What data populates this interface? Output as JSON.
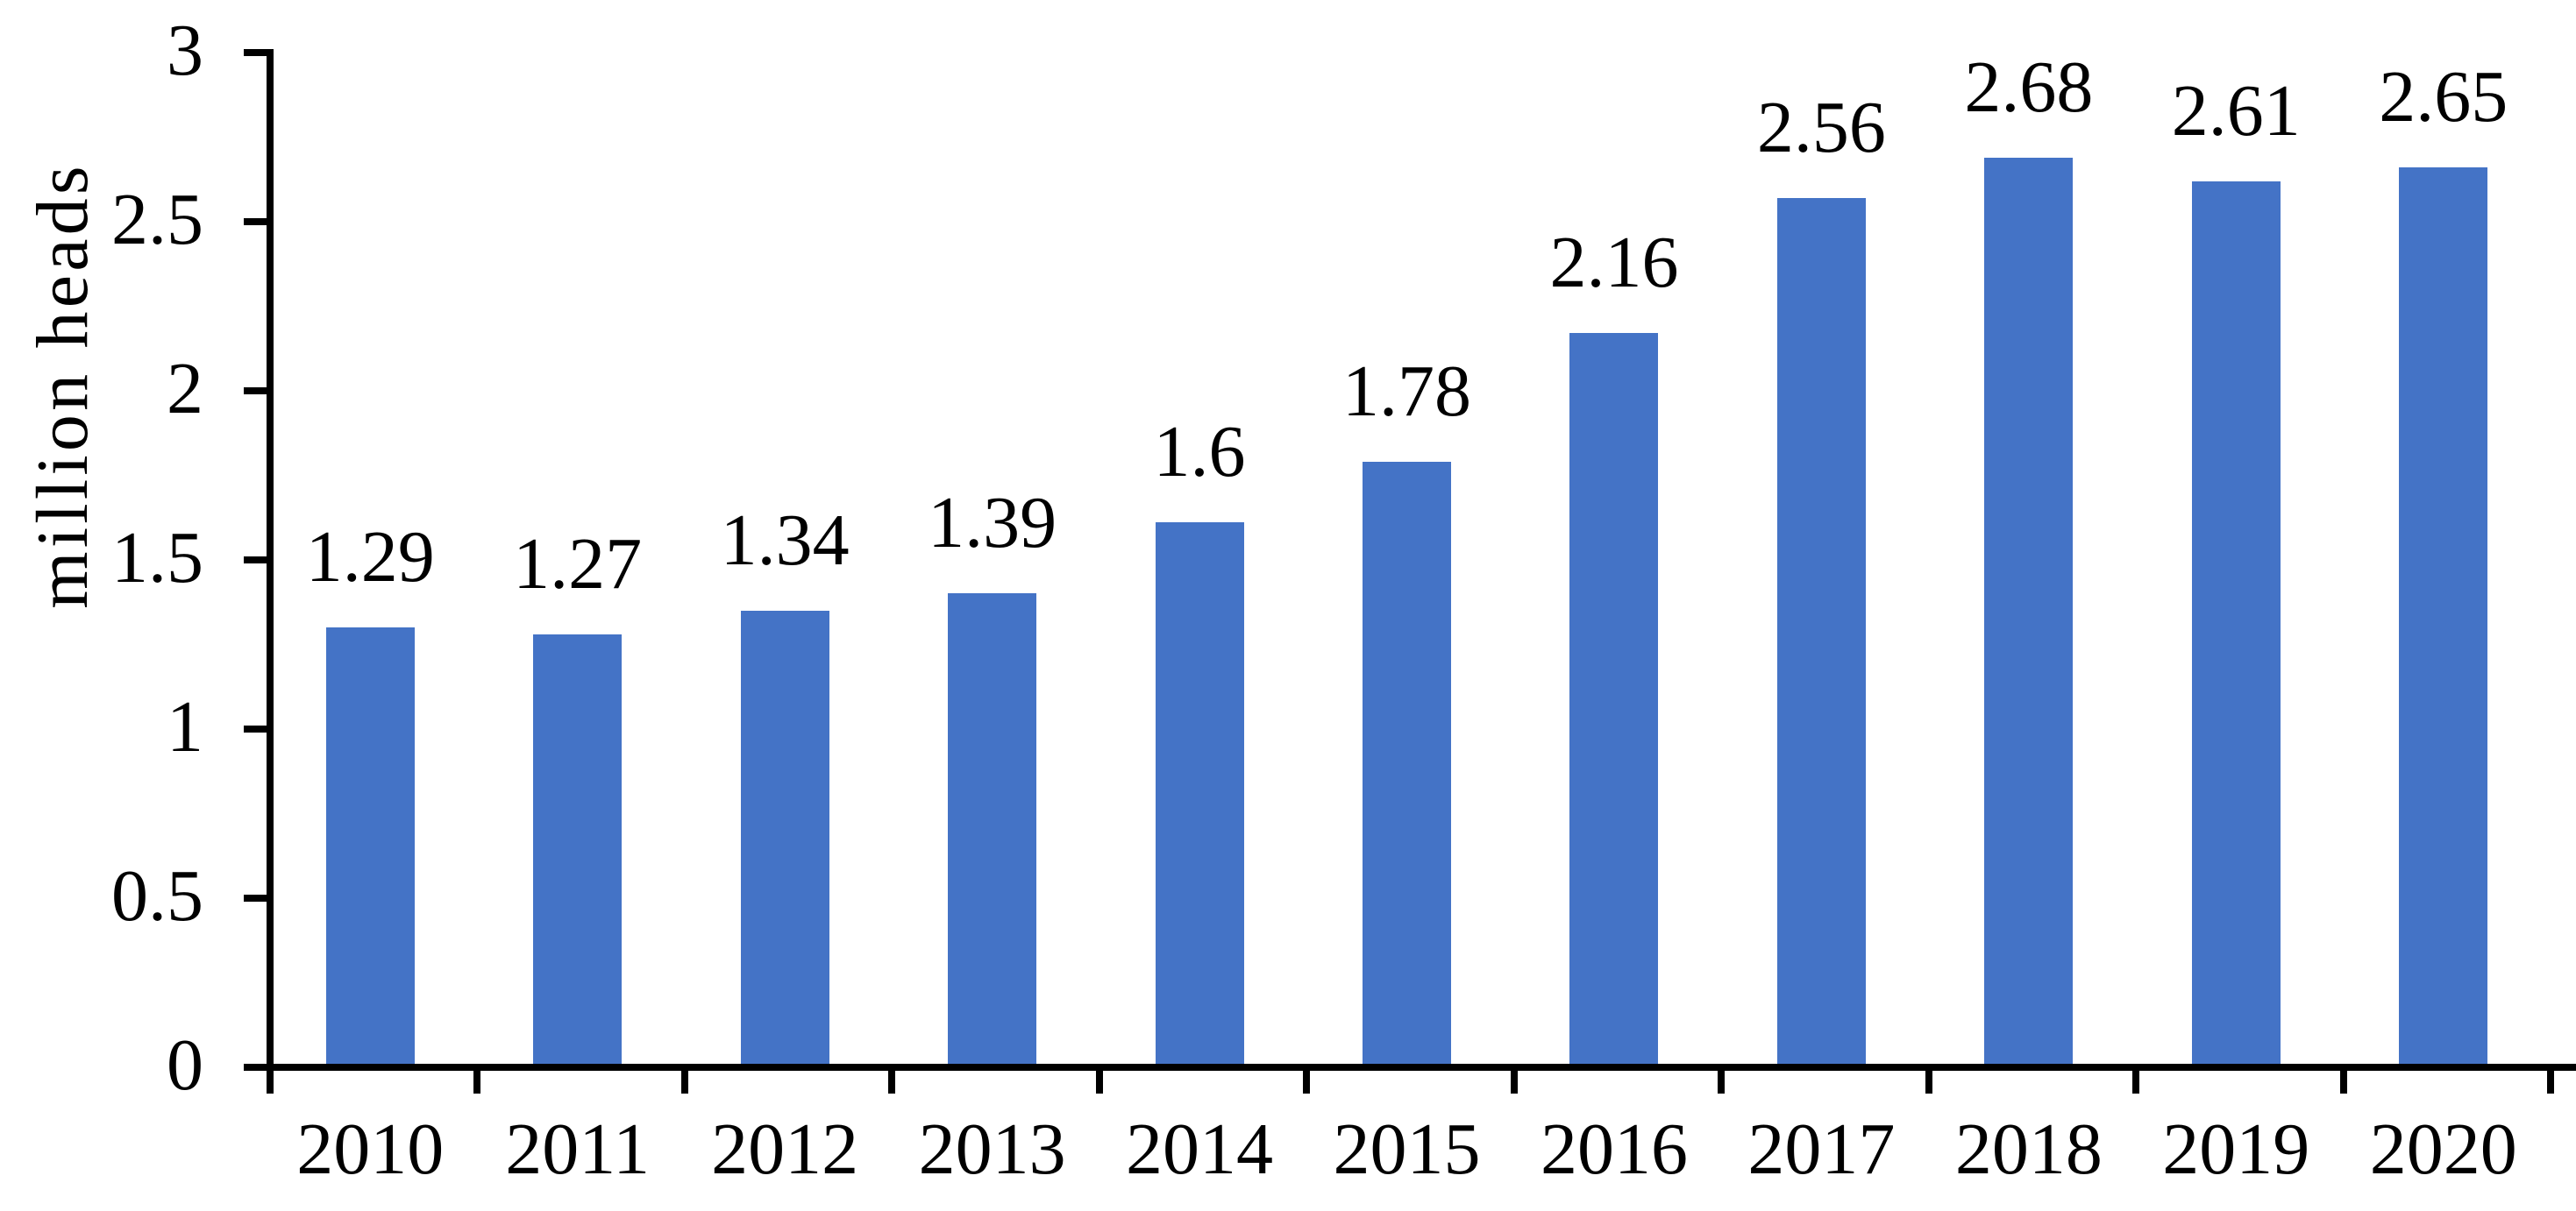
{
  "chart_data": {
    "type": "bar",
    "title": "",
    "xlabel": "",
    "ylabel": "million heads",
    "categories": [
      "2010",
      "2011",
      "2012",
      "2013",
      "2014",
      "2015",
      "2016",
      "2017",
      "2018",
      "2019",
      "2020"
    ],
    "values": [
      1.29,
      1.27,
      1.34,
      1.39,
      1.6,
      1.78,
      2.16,
      2.56,
      2.68,
      2.61,
      2.65
    ],
    "bar_labels": [
      "1.29",
      "1.27",
      "1.34",
      "1.39",
      "1.6",
      "1.78",
      "2.16",
      "2.56",
      "2.68",
      "2.61",
      "2.65"
    ],
    "ylim": [
      0,
      3
    ],
    "ytick_step": 0.5,
    "ytick_labels": [
      "0",
      "0.5",
      "1",
      "1.5",
      "2",
      "2.5",
      "3"
    ],
    "grid": false,
    "legend": "none",
    "bar_color": "#4473C6",
    "axis_color": "#000000",
    "text_color": "#000000",
    "background_color": "#ffffff"
  }
}
